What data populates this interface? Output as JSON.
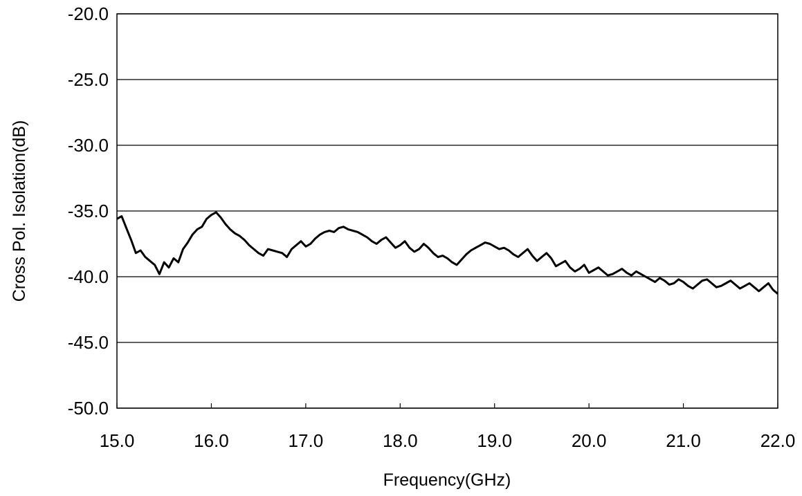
{
  "chart_data": {
    "type": "line",
    "xlabel": "Frequency(GHz)",
    "ylabel": "Cross Pol. Isolation(dB)",
    "xlim": [
      15.0,
      22.0
    ],
    "ylim": [
      -50.0,
      -20.0
    ],
    "xticks": [
      "15.0",
      "16.0",
      "17.0",
      "18.0",
      "19.0",
      "20.0",
      "21.0",
      "22.0"
    ],
    "yticks": [
      "-20.0",
      "-25.0",
      "-30.0",
      "-35.0",
      "-40.0",
      "-45.0",
      "-50.0"
    ],
    "grid": "horizontal",
    "line_color": "#000000",
    "series": [
      {
        "x": [
          15.0,
          15.05,
          15.1,
          15.15,
          15.2,
          15.25,
          15.3,
          15.35,
          15.4,
          15.45,
          15.5,
          15.55,
          15.6,
          15.65,
          15.7,
          15.75,
          15.8,
          15.85,
          15.9,
          15.95,
          16.0,
          16.05,
          16.1,
          16.15,
          16.2,
          16.25,
          16.3,
          16.35,
          16.4,
          16.45,
          16.5,
          16.55,
          16.6,
          16.65,
          16.7,
          16.75,
          16.8,
          16.85,
          16.9,
          16.95,
          17.0,
          17.05,
          17.1,
          17.15,
          17.2,
          17.25,
          17.3,
          17.35,
          17.4,
          17.45,
          17.5,
          17.55,
          17.6,
          17.65,
          17.7,
          17.75,
          17.8,
          17.85,
          17.9,
          17.95,
          18.0,
          18.05,
          18.1,
          18.15,
          18.2,
          18.25,
          18.3,
          18.35,
          18.4,
          18.45,
          18.5,
          18.55,
          18.6,
          18.65,
          18.7,
          18.75,
          18.8,
          18.85,
          18.9,
          18.95,
          19.0,
          19.05,
          19.1,
          19.15,
          19.2,
          19.25,
          19.3,
          19.35,
          19.4,
          19.45,
          19.5,
          19.55,
          19.6,
          19.65,
          19.7,
          19.75,
          19.8,
          19.85,
          19.9,
          19.95,
          20.0,
          20.05,
          20.1,
          20.15,
          20.2,
          20.25,
          20.3,
          20.35,
          20.4,
          20.45,
          20.5,
          20.55,
          20.6,
          20.65,
          20.7,
          20.75,
          20.8,
          20.85,
          20.9,
          20.95,
          21.0,
          21.05,
          21.1,
          21.15,
          21.2,
          21.25,
          21.3,
          21.35,
          21.4,
          21.45,
          21.5,
          21.55,
          21.6,
          21.65,
          21.7,
          21.75,
          21.8,
          21.85,
          21.9,
          21.95,
          22.0
        ],
        "values": [
          -35.6,
          -35.4,
          -36.3,
          -37.2,
          -38.2,
          -38.0,
          -38.5,
          -38.8,
          -39.1,
          -39.8,
          -38.9,
          -39.3,
          -38.6,
          -38.9,
          -37.9,
          -37.4,
          -36.8,
          -36.4,
          -36.2,
          -35.6,
          -35.3,
          -35.1,
          -35.5,
          -36.0,
          -36.4,
          -36.7,
          -36.9,
          -37.2,
          -37.6,
          -37.9,
          -38.2,
          -38.4,
          -37.9,
          -38.0,
          -38.1,
          -38.2,
          -38.5,
          -37.9,
          -37.6,
          -37.3,
          -37.7,
          -37.5,
          -37.1,
          -36.8,
          -36.6,
          -36.5,
          -36.6,
          -36.3,
          -36.2,
          -36.4,
          -36.5,
          -36.6,
          -36.8,
          -37.0,
          -37.3,
          -37.5,
          -37.2,
          -37.0,
          -37.4,
          -37.8,
          -37.6,
          -37.3,
          -37.8,
          -38.1,
          -37.9,
          -37.5,
          -37.8,
          -38.2,
          -38.5,
          -38.4,
          -38.6,
          -38.9,
          -39.1,
          -38.7,
          -38.3,
          -38.0,
          -37.8,
          -37.6,
          -37.4,
          -37.5,
          -37.7,
          -37.9,
          -37.8,
          -38.0,
          -38.3,
          -38.5,
          -38.2,
          -37.9,
          -38.4,
          -38.8,
          -38.5,
          -38.2,
          -38.6,
          -39.2,
          -39.0,
          -38.8,
          -39.3,
          -39.6,
          -39.4,
          -39.1,
          -39.7,
          -39.5,
          -39.3,
          -39.6,
          -39.9,
          -39.8,
          -39.6,
          -39.4,
          -39.7,
          -39.9,
          -39.6,
          -39.8,
          -40.0,
          -40.2,
          -40.4,
          -40.1,
          -40.3,
          -40.6,
          -40.5,
          -40.2,
          -40.4,
          -40.7,
          -40.9,
          -40.6,
          -40.3,
          -40.2,
          -40.5,
          -40.8,
          -40.7,
          -40.5,
          -40.3,
          -40.6,
          -40.9,
          -40.7,
          -40.5,
          -40.8,
          -41.1,
          -40.8,
          -40.5,
          -41.0,
          -41.3
        ]
      }
    ]
  }
}
